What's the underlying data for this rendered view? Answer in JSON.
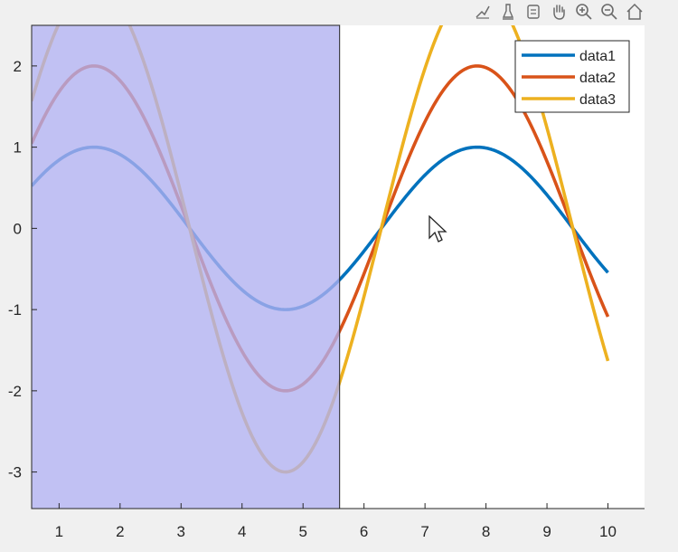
{
  "toolbar": {
    "buttons": [
      {
        "icon": "brush-data-icon"
      },
      {
        "icon": "data-tips-icon"
      },
      {
        "icon": "rotate-icon"
      },
      {
        "icon": "pan-hand-icon"
      },
      {
        "icon": "zoom-in-icon"
      },
      {
        "icon": "zoom-out-icon"
      },
      {
        "icon": "home-restore-icon"
      }
    ]
  },
  "colors": {
    "figure_bg": "#f0f0f0",
    "axes_bg": "#ffffff",
    "brush_region": "#b0b0f0",
    "data1": "#0072bd",
    "data2": "#d95319",
    "data3": "#edb120"
  },
  "chart_data": {
    "type": "line",
    "title": "",
    "xlabel": "",
    "ylabel": "",
    "xlim": [
      0.55,
      10.6
    ],
    "ylim": [
      -3.45,
      2.5
    ],
    "xticks": [
      1,
      2,
      3,
      4,
      5,
      6,
      7,
      8,
      9,
      10
    ],
    "yticks": [
      -3,
      -2,
      -1,
      0,
      1,
      2
    ],
    "x_range": [
      0.55,
      10
    ],
    "series": [
      {
        "name": "data1",
        "function": "sin(x)",
        "amplitude": 1
      },
      {
        "name": "data2",
        "function": "2*sin(x)",
        "amplitude": 2
      },
      {
        "name": "data3",
        "function": "3*sin(x)",
        "amplitude": 3
      }
    ],
    "brushed_x_range": [
      0.55,
      5.6
    ],
    "legend": {
      "placement": "top-right",
      "entries": [
        "data1",
        "data2",
        "data3"
      ]
    },
    "grid": false
  }
}
